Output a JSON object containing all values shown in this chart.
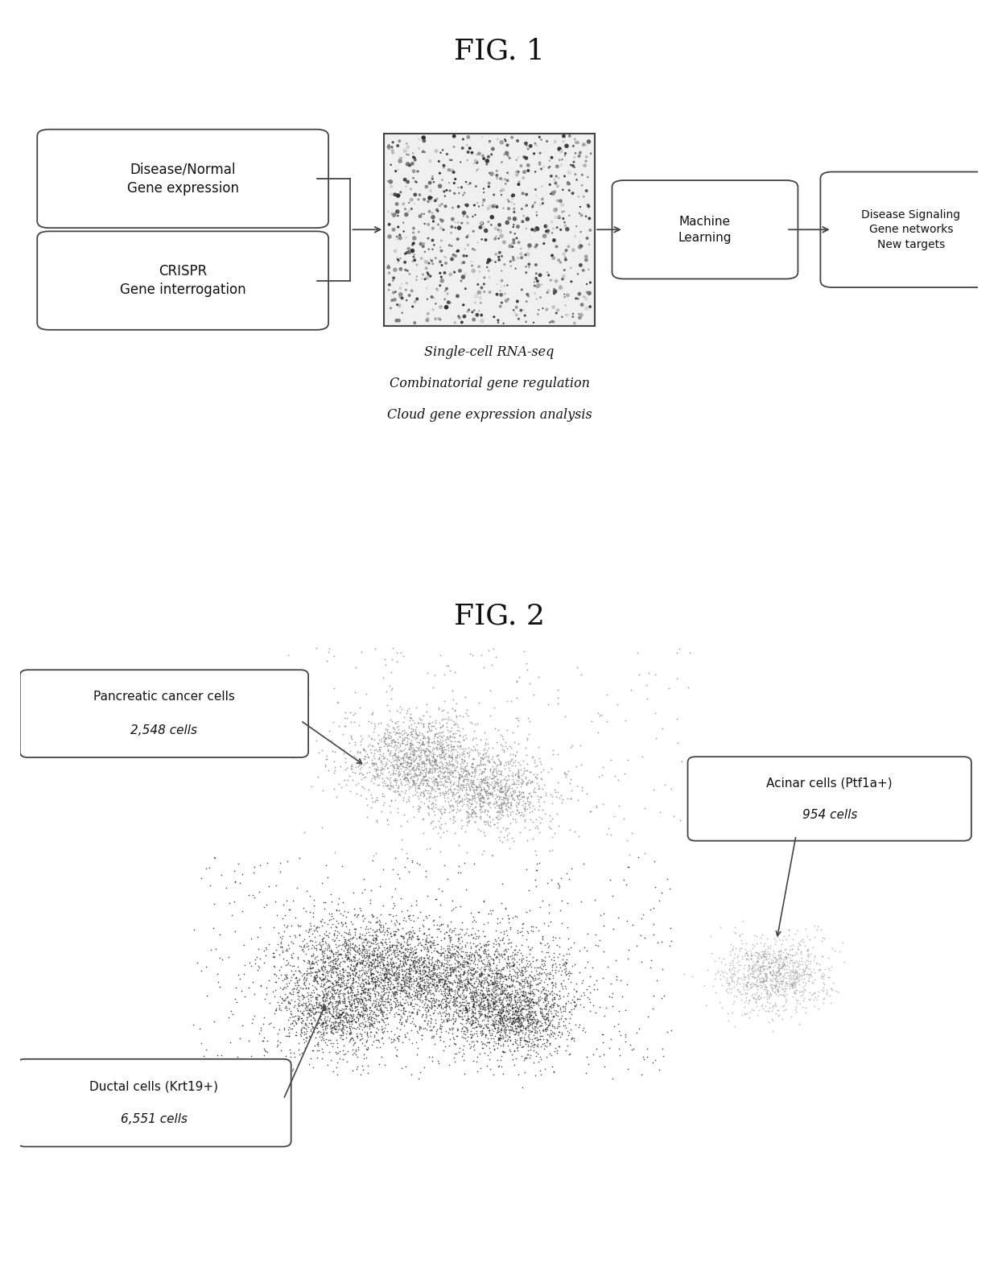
{
  "fig1_title": "FIG. 1",
  "fig2_title": "FIG. 2",
  "box1_text": "Disease/Normal\nGene expression",
  "box2_text": "CRISPR\nGene interrogation",
  "box3_text": "Machine\nLearning",
  "box4_text": "Disease Signaling\nGene networks\nNew targets",
  "caption_lines": [
    "Single-cell RNA-seq",
    "Combinatorial gene regulation",
    "Cloud gene expression analysis"
  ],
  "label_cancer_line1": "Pancreatic cancer cells",
  "label_cancer_line2": "2,548 cells",
  "label_ductal_line1": "Ductal cells (",
  "label_ductal_italic": "Krt19+",
  "label_ductal_line2": ")",
  "label_ductal_count": "6,551 cells",
  "label_acinar_line1": "Acinar cells (",
  "label_acinar_italic": "Ptf1a+",
  "label_acinar_line2": ")",
  "label_acinar_count": "954 cells",
  "bg_color": "#ffffff",
  "box_color": "#ffffff",
  "box_edge": "#444444",
  "text_color": "#111111"
}
